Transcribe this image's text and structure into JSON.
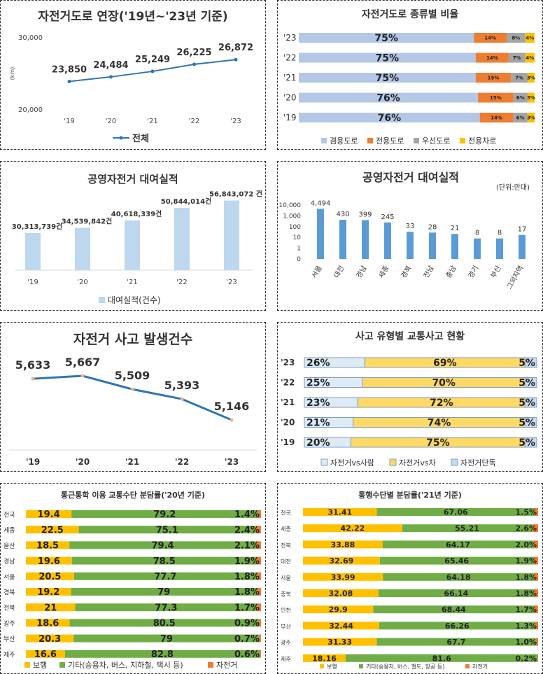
{
  "chart_data": [
    {
      "id": "p1",
      "type": "line",
      "title": "자전거도로 연장('19년~'23년 기준)",
      "ylabel": "(km)",
      "categories": [
        "'19",
        "'20",
        "'21",
        "'22",
        "'23"
      ],
      "series": [
        {
          "name": "전체",
          "values": [
            23850,
            24484,
            25249,
            26225,
            26872
          ]
        }
      ],
      "data_labels": [
        "23,850",
        "24,484",
        "25,249",
        "26,225",
        "26,872"
      ],
      "yticks": [
        "30,000",
        "20,000"
      ],
      "ylim": [
        20000,
        30000
      ],
      "color": "#2e75b6"
    },
    {
      "id": "p2",
      "type": "bar",
      "orientation": "horizontal-stacked",
      "title": "자전거도로 종류별 비율",
      "categories": [
        "'23",
        "'22",
        "'21",
        "'20",
        "'19"
      ],
      "series": [
        {
          "name": "겸용도로",
          "color": "#b4c7e7",
          "values": [
            75,
            75,
            75,
            76,
            76
          ],
          "labels": [
            "75%",
            "75%",
            "75%",
            "76%",
            "76%"
          ]
        },
        {
          "name": "전용도로",
          "color": "#ed7d31",
          "values": [
            14,
            14,
            15,
            15,
            14
          ],
          "labels": [
            "14%",
            "14%",
            "15%",
            "15%",
            "14%"
          ]
        },
        {
          "name": "우선도로",
          "color": "#a5a5a5",
          "values": [
            8,
            7,
            7,
            6,
            6
          ],
          "labels": [
            "8%",
            "7%",
            "7%",
            "6%",
            "6%"
          ]
        },
        {
          "name": "전용차로",
          "color": "#ffc000",
          "values": [
            4,
            4,
            3,
            3,
            3
          ],
          "labels": [
            "4%",
            "4%",
            "3%",
            "3%",
            "3%"
          ]
        }
      ]
    },
    {
      "id": "p3",
      "type": "bar",
      "title": "공영자전거 대여실적",
      "categories": [
        "'19",
        "'20",
        "'21",
        "'22",
        "'23"
      ],
      "series": [
        {
          "name": "대여실적(건수)",
          "values": [
            30313739,
            34539842,
            40618339,
            50844014,
            56843072
          ]
        }
      ],
      "data_labels": [
        "30,313,739건",
        "34,539,842건",
        "40,618,339건",
        "50,844,014건",
        "56,843,072 건"
      ],
      "color": "#bdd7ee"
    },
    {
      "id": "p4",
      "type": "bar",
      "title": "공영자전거 대여실적",
      "unit": "(단위:만대)",
      "scale": "log",
      "categories": [
        "서울",
        "대전",
        "경남",
        "세종",
        "경북",
        "전남",
        "충남",
        "경기",
        "부산",
        "그외지역"
      ],
      "values": [
        4494,
        430,
        399,
        245,
        33,
        28,
        21,
        8,
        8,
        17
      ],
      "data_labels": [
        "4,494",
        "430",
        "399",
        "245",
        "33",
        "28",
        "21",
        "8",
        "8",
        "17"
      ],
      "yticks": [
        "10,000",
        "1,000",
        "100",
        "10",
        "1",
        "0"
      ],
      "color": "#5b9bd5"
    },
    {
      "id": "p5",
      "type": "line",
      "title": "자전거 사고 발생건수",
      "categories": [
        "'19",
        "'20",
        "'21",
        "'22",
        "'23"
      ],
      "values": [
        5633,
        5667,
        5509,
        5393,
        5146
      ],
      "data_labels": [
        "5,633",
        "5,667",
        "5,509",
        "5,393",
        "5,146"
      ],
      "color": "#2e75b6"
    },
    {
      "id": "p6",
      "type": "bar",
      "orientation": "horizontal-stacked",
      "title": "사고 유형별 교통사고 현황",
      "categories": [
        "'23",
        "'22",
        "'21",
        "'20",
        "'19"
      ],
      "series": [
        {
          "name": "자전거vs사람",
          "color": "#deebf7",
          "values": [
            26,
            25,
            23,
            21,
            20
          ],
          "labels": [
            "26%",
            "25%",
            "23%",
            "21%",
            "20%"
          ]
        },
        {
          "name": "자전거vs차",
          "color": "#ffd966",
          "values": [
            69,
            70,
            72,
            74,
            75
          ],
          "labels": [
            "69%",
            "70%",
            "72%",
            "74%",
            "75%"
          ]
        },
        {
          "name": "자전거단독",
          "color": "#c9daf0",
          "values": [
            5,
            5,
            5,
            5,
            5
          ],
          "labels": [
            "5%",
            "5%",
            "5%",
            "5%",
            "5%"
          ]
        }
      ]
    },
    {
      "id": "p7",
      "type": "bar",
      "orientation": "horizontal-stacked",
      "title": "통근통학 이용 교통수단 분담률('20년 기준)",
      "categories": [
        "전국",
        "세종",
        "울산",
        "경남",
        "서울",
        "경북",
        "전북",
        "광주",
        "부산",
        "제주"
      ],
      "series": [
        {
          "name": "보행",
          "color": "#ffc000",
          "values": [
            19.4,
            22.5,
            18.5,
            19.6,
            20.5,
            19.2,
            21,
            18.6,
            20.3,
            16.6
          ],
          "labels": [
            "19.4",
            "22.5",
            "18.5",
            "19.6",
            "20.5",
            "19.2",
            "21",
            "18.6",
            "20.3",
            "16.6"
          ]
        },
        {
          "name": "기타(승용차, 버스, 지하철, 택시 등)",
          "color": "#70ad47",
          "values": [
            79.2,
            75.1,
            79.4,
            78.5,
            77.7,
            79,
            77.3,
            80.5,
            79,
            82.8
          ],
          "labels": [
            "79.2",
            "75.1",
            "79.4",
            "78.5",
            "77.7",
            "79",
            "77.3",
            "80.5",
            "79",
            "82.8"
          ]
        },
        {
          "name": "자전거",
          "color": "#ed7d31",
          "values": [
            1.4,
            2.4,
            2.1,
            1.9,
            1.8,
            1.8,
            1.7,
            0.9,
            0.7,
            0.6
          ],
          "labels": [
            "1.4%",
            "2.4%",
            "2.1%",
            "1.9%",
            "1.8%",
            "1.8%",
            "1.7%",
            "0.9%",
            "0.7%",
            "0.6%"
          ]
        }
      ]
    },
    {
      "id": "p8",
      "type": "bar",
      "orientation": "horizontal-stacked",
      "title": "통행수단별 분담률('21년 기준)",
      "categories": [
        "전국",
        "세종",
        "전북",
        "대전",
        "서울",
        "충북",
        "인천",
        "부산",
        "광주",
        "제주"
      ],
      "series": [
        {
          "name": "보행",
          "color": "#ffc000",
          "values": [
            31.41,
            42.22,
            33.88,
            32.69,
            33.99,
            32.08,
            29.9,
            32.44,
            31.33,
            18.16
          ],
          "labels": [
            "31.41",
            "42.22",
            "33.88",
            "32.69",
            "33.99",
            "32.08",
            "29.9",
            "32.44",
            "31.33",
            "18.16"
          ]
        },
        {
          "name": "기타(승용차, 버스, 철도, 항공 등)",
          "color": "#70ad47",
          "values": [
            67.06,
            55.21,
            64.17,
            65.46,
            64.18,
            66.14,
            68.44,
            66.26,
            67.7,
            81.6
          ],
          "labels": [
            "67.06",
            "55.21",
            "64.17",
            "65.46",
            "64.18",
            "66.14",
            "68.44",
            "66.26",
            "67.7",
            "81.6"
          ]
        },
        {
          "name": "자전거",
          "color": "#ed7d31",
          "values": [
            1.5,
            2.6,
            2.0,
            1.9,
            1.8,
            1.8,
            1.7,
            1.3,
            1.0,
            0.2
          ],
          "labels": [
            "1.5%",
            "2.6%",
            "2.0%",
            "1.9%",
            "1.8%",
            "1.8%",
            "1.7%",
            "1.3%",
            "1.0%",
            "0.2%"
          ]
        }
      ]
    }
  ]
}
